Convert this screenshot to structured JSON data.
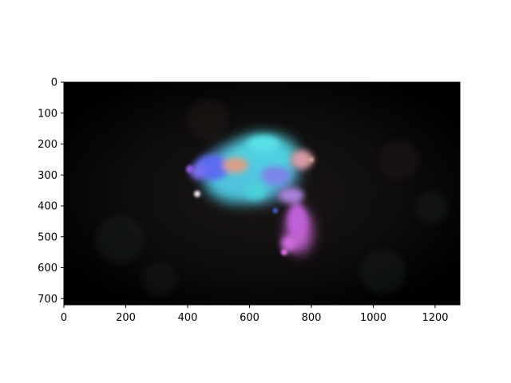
{
  "chart_data": {
    "type": "heatmap",
    "title": "",
    "xlabel": "",
    "ylabel": "",
    "xlim": [
      0,
      1280
    ],
    "ylim": [
      720,
      0
    ],
    "x_ticks": [
      0,
      200,
      400,
      600,
      800,
      1000,
      1200
    ],
    "y_ticks": [
      0,
      100,
      200,
      300,
      400,
      500,
      600,
      700
    ],
    "x_tick_labels": [
      "0",
      "200",
      "400",
      "600",
      "800",
      "1000",
      "1200"
    ],
    "y_tick_labels": [
      "0",
      "100",
      "200",
      "300",
      "400",
      "500",
      "600",
      "700"
    ],
    "grid": false,
    "image_description_colors": {
      "background": "#000000",
      "cyan": "#4fd8e6",
      "blue": "#5a6cf0",
      "magenta": "#d067e0",
      "salmon": "#d89a8a",
      "purple": "#8a5ad8"
    },
    "regions": [
      {
        "name": "main-blob",
        "center": [
          620,
          290
        ],
        "extent": [
          220,
          160
        ],
        "color": "cyan"
      },
      {
        "name": "blue-lobe",
        "center": [
          470,
          290
        ],
        "extent": [
          80,
          60
        ],
        "color": "blue"
      },
      {
        "name": "salmon-patch",
        "center": [
          550,
          270
        ],
        "extent": [
          60,
          40
        ],
        "color": "salmon"
      },
      {
        "name": "right-pink",
        "center": [
          760,
          250
        ],
        "extent": [
          50,
          40
        ],
        "color": "salmon"
      },
      {
        "name": "magenta-tail",
        "center": [
          740,
          460
        ],
        "extent": [
          50,
          110
        ],
        "color": "magenta"
      },
      {
        "name": "purple-spot",
        "center": [
          440,
          300
        ],
        "extent": [
          20,
          20
        ],
        "color": "purple"
      }
    ]
  }
}
